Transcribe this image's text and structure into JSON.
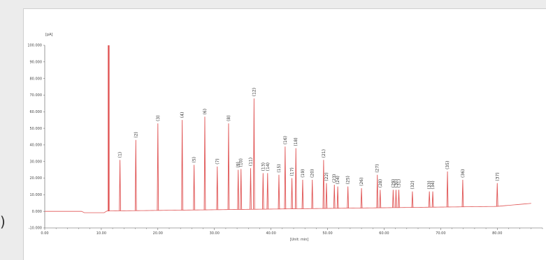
{
  "side_glyph": ")",
  "chart_data": {
    "type": "line",
    "title": "",
    "xlabel": "[Unit: min]",
    "ylabel": "[pA]",
    "xlim": [
      0,
      88
    ],
    "ylim": [
      -10000,
      100000
    ],
    "grid": false,
    "line_color": "#e05555",
    "x_ticks": [
      0,
      10,
      20,
      30,
      40,
      50,
      60,
      70,
      80
    ],
    "x_tick_labels": [
      "0.00",
      "10.00",
      "20.00",
      "30.00",
      "40.00",
      "50.00",
      "60.00",
      "70.00",
      "80.00"
    ],
    "y_ticks": [
      -10000,
      0,
      10000,
      20000,
      30000,
      40000,
      50000,
      60000,
      70000,
      80000,
      90000,
      100000
    ],
    "y_tick_labels": [
      "-10.000",
      "0.000",
      "10.000",
      "20.000",
      "30.000",
      "40.000",
      "50.000",
      "60.000",
      "70.000",
      "80.000",
      "90.000",
      "100.000"
    ],
    "solvent_peak": {
      "x": 11.3,
      "y": 100000
    },
    "peaks": [
      {
        "label": "(1)",
        "x": 13.3,
        "y": 31000
      },
      {
        "label": "(2)",
        "x": 16.1,
        "y": 43000
      },
      {
        "label": "(3)",
        "x": 20.0,
        "y": 53000
      },
      {
        "label": "(4)",
        "x": 24.3,
        "y": 55000
      },
      {
        "label": "(5)",
        "x": 26.4,
        "y": 28000
      },
      {
        "label": "(6)",
        "x": 28.3,
        "y": 57000
      },
      {
        "label": "(7)",
        "x": 30.5,
        "y": 27000
      },
      {
        "label": "(8)",
        "x": 32.5,
        "y": 53000
      },
      {
        "label": "(9)",
        "x": 34.2,
        "y": 25000
      },
      {
        "label": "(10)",
        "x": 34.7,
        "y": 25500
      },
      {
        "label": "(11)",
        "x": 36.4,
        "y": 26000
      },
      {
        "label": "(12)",
        "x": 37.0,
        "y": 68000
      },
      {
        "label": "(13)",
        "x": 38.6,
        "y": 23000
      },
      {
        "label": "(14)",
        "x": 39.4,
        "y": 23000
      },
      {
        "label": "(15)",
        "x": 41.4,
        "y": 22000
      },
      {
        "label": "(16)",
        "x": 42.5,
        "y": 39000
      },
      {
        "label": "(17)",
        "x": 43.7,
        "y": 20000
      },
      {
        "label": "(18)",
        "x": 44.4,
        "y": 38000
      },
      {
        "label": "(19)",
        "x": 45.6,
        "y": 19000
      },
      {
        "label": "(20)",
        "x": 47.3,
        "y": 19000
      },
      {
        "label": "(21)",
        "x": 49.3,
        "y": 31000
      },
      {
        "label": "(22)",
        "x": 49.8,
        "y": 17000
      },
      {
        "label": "(23)",
        "x": 51.2,
        "y": 16000
      },
      {
        "label": "(24)",
        "x": 51.8,
        "y": 15000
      },
      {
        "label": "(25)",
        "x": 53.6,
        "y": 15000
      },
      {
        "label": "(26)",
        "x": 56.0,
        "y": 14000
      },
      {
        "label": "(27)",
        "x": 58.8,
        "y": 22000
      },
      {
        "label": "(28)",
        "x": 59.3,
        "y": 13000
      },
      {
        "label": "(29)",
        "x": 61.6,
        "y": 13000
      },
      {
        "label": "(30)",
        "x": 62.1,
        "y": 13000
      },
      {
        "label": "(31)",
        "x": 62.6,
        "y": 13000
      },
      {
        "label": "(32)",
        "x": 65.0,
        "y": 12000
      },
      {
        "label": "(33)",
        "x": 68.0,
        "y": 12000
      },
      {
        "label": "(34)",
        "x": 68.6,
        "y": 12000
      },
      {
        "label": "(35)",
        "x": 71.2,
        "y": 24000
      },
      {
        "label": "(36)",
        "x": 73.9,
        "y": 19000
      },
      {
        "label": "(37)",
        "x": 80.0,
        "y": 17000
      }
    ]
  }
}
